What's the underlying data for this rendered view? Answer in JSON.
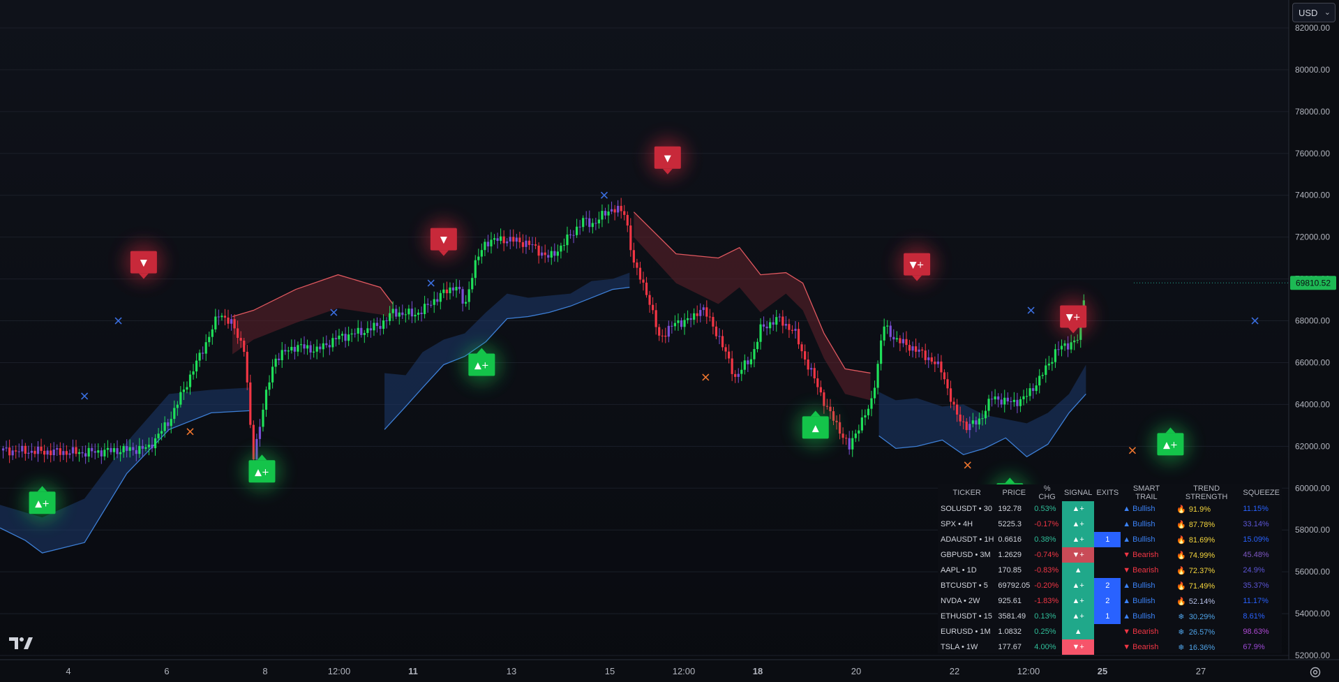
{
  "toolbar": {
    "currency": "USD"
  },
  "chart_data": {
    "type": "candlestick",
    "y_axis": {
      "range": [
        51000,
        83500
      ],
      "tick_labels": [
        "82000.00",
        "80000.00",
        "78000.00",
        "76000.00",
        "74000.00",
        "72000.00",
        "70000.00",
        "68000.00",
        "66000.00",
        "64000.00",
        "62000.00",
        "60000.00",
        "58000.00",
        "56000.00",
        "54000.00",
        "52000.00"
      ],
      "last_price_label": "69810.52",
      "last_price": 69810.52
    },
    "x_axis": {
      "tick_labels": [
        {
          "label": "4",
          "bold": false
        },
        {
          "label": "6",
          "bold": false
        },
        {
          "label": "8",
          "bold": false
        },
        {
          "label": "12:00",
          "bold": false
        },
        {
          "label": "11",
          "bold": true
        },
        {
          "label": "13",
          "bold": false
        },
        {
          "label": "15",
          "bold": false
        },
        {
          "label": "12:00",
          "bold": false
        },
        {
          "label": "18",
          "bold": true
        },
        {
          "label": "20",
          "bold": false
        },
        {
          "label": "22",
          "bold": false
        },
        {
          "label": "12:00",
          "bold": false
        },
        {
          "label": "25",
          "bold": true
        },
        {
          "label": "27",
          "bold": false
        }
      ]
    },
    "price_path": [
      [
        0,
        61800
      ],
      [
        2,
        61700
      ],
      [
        3.5,
        61900
      ],
      [
        4,
        63200
      ],
      [
        4.3,
        64500
      ],
      [
        4.7,
        66200
      ],
      [
        5,
        67500
      ],
      [
        5.2,
        68400
      ],
      [
        5.5,
        67800
      ],
      [
        5.8,
        66600
      ],
      [
        5.9,
        63300
      ],
      [
        6,
        61500
      ],
      [
        6.2,
        63600
      ],
      [
        6.5,
        66200
      ],
      [
        7,
        66800
      ],
      [
        7.5,
        66600
      ],
      [
        8,
        67200
      ],
      [
        8.6,
        67500
      ],
      [
        9,
        67800
      ],
      [
        9.3,
        68400
      ],
      [
        9.8,
        68300
      ],
      [
        10,
        68500
      ],
      [
        10.4,
        69200
      ],
      [
        10.8,
        69700
      ],
      [
        11,
        68600
      ],
      [
        11.2,
        70500
      ],
      [
        11.5,
        71800
      ],
      [
        12,
        71900
      ],
      [
        12.5,
        71700
      ],
      [
        13,
        71000
      ],
      [
        13.3,
        71600
      ],
      [
        13.8,
        72800
      ],
      [
        14,
        72600
      ],
      [
        14.5,
        73400
      ],
      [
        14.8,
        73100
      ],
      [
        15,
        70700
      ],
      [
        15.3,
        69400
      ],
      [
        15.6,
        67200
      ],
      [
        16,
        67900
      ],
      [
        16.4,
        68100
      ],
      [
        16.6,
        68700
      ],
      [
        17,
        67300
      ],
      [
        17.4,
        65300
      ],
      [
        17.8,
        66300
      ],
      [
        18,
        67600
      ],
      [
        18.4,
        68100
      ],
      [
        18.8,
        67500
      ],
      [
        19,
        66400
      ],
      [
        19.3,
        65100
      ],
      [
        19.6,
        63700
      ],
      [
        19.9,
        62700
      ],
      [
        20.1,
        61900
      ],
      [
        20.3,
        62900
      ],
      [
        20.6,
        63900
      ],
      [
        20.8,
        66200
      ],
      [
        20.9,
        67800
      ],
      [
        21.2,
        67100
      ],
      [
        21.6,
        66700
      ],
      [
        22,
        66200
      ],
      [
        22.3,
        65600
      ],
      [
        22.6,
        63600
      ],
      [
        22.9,
        62900
      ],
      [
        23.2,
        63300
      ],
      [
        23.5,
        64400
      ],
      [
        23.8,
        64100
      ],
      [
        24.2,
        64200
      ],
      [
        24.6,
        65200
      ],
      [
        25,
        66600
      ],
      [
        25.5,
        67100
      ],
      [
        25.7,
        69810
      ]
    ],
    "smart_trail_bear_band": {
      "upper": [
        [
          5.5,
          68200
        ],
        [
          6,
          68500
        ],
        [
          7,
          69500
        ],
        [
          8,
          70200
        ],
        [
          9,
          69600
        ],
        [
          9.3,
          68800
        ]
      ],
      "lower": [
        [
          5.5,
          66400
        ],
        [
          6,
          67100
        ],
        [
          7,
          67900
        ],
        [
          8,
          68600
        ],
        [
          9,
          68300
        ],
        [
          9.3,
          68100
        ]
      ],
      "start2": [
        [
          15,
          73200
        ],
        [
          16,
          71200
        ],
        [
          17,
          71000
        ],
        [
          17.5,
          71500
        ],
        [
          18,
          70200
        ],
        [
          18.6,
          70300
        ],
        [
          19,
          69800
        ],
        [
          19.5,
          67400
        ],
        [
          20,
          65700
        ],
        [
          20.6,
          65500
        ]
      ],
      "end2": [
        [
          15,
          72000
        ],
        [
          16,
          69800
        ],
        [
          17,
          68800
        ],
        [
          17.5,
          69600
        ],
        [
          18,
          68400
        ],
        [
          18.6,
          69300
        ],
        [
          19,
          68500
        ],
        [
          19.5,
          66200
        ],
        [
          20,
          64500
        ],
        [
          20.6,
          64200
        ]
      ]
    },
    "smart_trail_bull_band": {
      "segments": [
        {
          "upper": [
            [
              0,
              59200
            ],
            [
              1,
              58600
            ],
            [
              2,
              59500
            ],
            [
              3,
              62200
            ],
            [
              4,
              64500
            ],
            [
              5,
              64700
            ],
            [
              5.9,
              64800
            ]
          ],
          "lower": [
            [
              0,
              58100
            ],
            [
              0.6,
              57500
            ],
            [
              1,
              56900
            ],
            [
              2,
              57400
            ],
            [
              3,
              60700
            ],
            [
              4,
              62800
            ],
            [
              5,
              63600
            ],
            [
              5.9,
              63700
            ]
          ]
        },
        {
          "upper": [
            [
              9.1,
              65500
            ],
            [
              9.6,
              65400
            ],
            [
              10,
              66500
            ],
            [
              10.5,
              67100
            ],
            [
              11,
              67400
            ],
            [
              11.5,
              68400
            ],
            [
              12,
              69300
            ],
            [
              12.5,
              69100
            ],
            [
              13,
              69200
            ],
            [
              13.5,
              69300
            ],
            [
              14,
              69900
            ],
            [
              14.5,
              70000
            ],
            [
              14.9,
              70300
            ]
          ],
          "lower": [
            [
              9.1,
              62800
            ],
            [
              9.6,
              63900
            ],
            [
              10,
              64800
            ],
            [
              10.5,
              65900
            ],
            [
              11,
              66300
            ],
            [
              11.5,
              67000
            ],
            [
              12,
              68100
            ],
            [
              12.5,
              68200
            ],
            [
              13,
              68400
            ],
            [
              13.5,
              68700
            ],
            [
              14,
              69100
            ],
            [
              14.5,
              69500
            ],
            [
              14.9,
              69600
            ]
          ]
        },
        {
          "upper": [
            [
              20.8,
              64600
            ],
            [
              21.2,
              64200
            ],
            [
              21.7,
              64300
            ],
            [
              22.3,
              63900
            ],
            [
              22.8,
              64000
            ],
            [
              23.3,
              63500
            ],
            [
              23.8,
              63300
            ],
            [
              24.3,
              63100
            ],
            [
              24.8,
              63600
            ],
            [
              25.3,
              64500
            ],
            [
              25.7,
              65900
            ]
          ],
          "lower": [
            [
              20.8,
              62500
            ],
            [
              21.2,
              61900
            ],
            [
              21.7,
              62000
            ],
            [
              22.3,
              62300
            ],
            [
              22.8,
              61600
            ],
            [
              23.3,
              61900
            ],
            [
              23.8,
              62400
            ],
            [
              24.3,
              61500
            ],
            [
              24.8,
              62100
            ],
            [
              25.3,
              63600
            ],
            [
              25.7,
              64500
            ]
          ]
        }
      ]
    },
    "signals": [
      {
        "type": "buy",
        "label": "▲+",
        "x": 1.0,
        "price": 59300
      },
      {
        "type": "buy",
        "label": "▲+",
        "x": 6.2,
        "price": 60800
      },
      {
        "type": "buy",
        "label": "▲+",
        "x": 11.4,
        "price": 65900
      },
      {
        "type": "buy",
        "label": "▲",
        "x": 19.3,
        "price": 62900
      },
      {
        "type": "buy",
        "label": "▲",
        "x": 23.9,
        "price": 59700
      },
      {
        "type": "buy",
        "label": "▲+",
        "x": 27.7,
        "price": 62100
      },
      {
        "type": "sell",
        "label": "▼",
        "x": 3.4,
        "price": 70800
      },
      {
        "type": "sell",
        "label": "▼",
        "x": 10.5,
        "price": 71900
      },
      {
        "type": "sell",
        "label": "▼",
        "x": 15.8,
        "price": 75800
      },
      {
        "type": "sell",
        "label": "▼+",
        "x": 21.7,
        "price": 70700
      },
      {
        "type": "sell",
        "label": "▼+",
        "x": 25.4,
        "price": 68200
      }
    ],
    "exits": [
      {
        "color": "blue",
        "x": 2.8,
        "price": 68000
      },
      {
        "color": "blue",
        "x": 2.0,
        "price": 64400
      },
      {
        "color": "orange",
        "x": 4.5,
        "price": 62700
      },
      {
        "color": "blue",
        "x": 7.9,
        "price": 68400
      },
      {
        "color": "blue",
        "x": 10.2,
        "price": 69800
      },
      {
        "color": "blue",
        "x": 14.3,
        "price": 74000
      },
      {
        "color": "orange",
        "x": 16.7,
        "price": 65300
      },
      {
        "color": "orange",
        "x": 22.9,
        "price": 61100
      },
      {
        "color": "blue",
        "x": 24.4,
        "price": 68500
      },
      {
        "color": "orange",
        "x": 26.8,
        "price": 61800
      },
      {
        "color": "blue",
        "x": 29.7,
        "price": 68000
      }
    ]
  },
  "screener": {
    "headers": [
      "TICKER",
      "PRICE",
      "% CHG",
      "SIGNAL",
      "EXITS",
      "SMART TRAIL",
      "TREND STRENGTH",
      "SQUEEZE"
    ],
    "rows": [
      {
        "ticker": "SOLUSDT • 30",
        "price": "192.78",
        "chg": "0.53%",
        "dir": "pos",
        "signal": "▲+",
        "sig": "bull",
        "exits": "",
        "trail": "▲ Bullish",
        "trail_dir": "bull",
        "icon": "fire",
        "strength": "91.9%",
        "strength_color": "#f5d63d",
        "squeeze": "11.15%",
        "squeeze_color": "#2962ff"
      },
      {
        "ticker": "SPX • 4H",
        "price": "5225.3",
        "chg": "-0.17%",
        "dir": "neg",
        "signal": "▲+",
        "sig": "bull",
        "exits": "",
        "trail": "▲ Bullish",
        "trail_dir": "bull",
        "icon": "fire",
        "strength": "87.78%",
        "strength_color": "#f5d63d",
        "squeeze": "33.14%",
        "squeeze_color": "#5c55d6"
      },
      {
        "ticker": "ADAUSDT • 1H",
        "price": "0.6616",
        "chg": "0.38%",
        "dir": "pos",
        "signal": "▲+",
        "sig": "bull",
        "exits": "1",
        "trail": "▲ Bullish",
        "trail_dir": "bull",
        "icon": "fire",
        "strength": "81.69%",
        "strength_color": "#f5d63d",
        "squeeze": "15.09%",
        "squeeze_color": "#2962ff"
      },
      {
        "ticker": "GBPUSD • 3M",
        "price": "1.2629",
        "chg": "-0.74%",
        "dir": "neg",
        "signal": "▼+",
        "sig": "bear-dim",
        "exits": "",
        "trail": "▼ Bearish",
        "trail_dir": "bear",
        "icon": "fire",
        "strength": "74.99%",
        "strength_color": "#f5d63d",
        "squeeze": "45.48%",
        "squeeze_color": "#7e57c2"
      },
      {
        "ticker": "AAPL • 1D",
        "price": "170.85",
        "chg": "-0.83%",
        "dir": "neg",
        "signal": "▲",
        "sig": "bull",
        "exits": "",
        "trail": "▼ Bearish",
        "trail_dir": "bear",
        "icon": "fire",
        "strength": "72.37%",
        "strength_color": "#f5d63d",
        "squeeze": "24.9%",
        "squeeze_color": "#5c55d6"
      },
      {
        "ticker": "BTCUSDT • 5",
        "price": "69792.05",
        "chg": "-0.20%",
        "dir": "neg",
        "signal": "▲+",
        "sig": "bull",
        "exits": "2",
        "trail": "▲ Bullish",
        "trail_dir": "bull",
        "icon": "fire",
        "strength": "71.49%",
        "strength_color": "#f5d63d",
        "squeeze": "35.37%",
        "squeeze_color": "#5c55d6"
      },
      {
        "ticker": "NVDA • 2W",
        "price": "925.61",
        "chg": "-1.83%",
        "dir": "neg",
        "signal": "▲+",
        "sig": "bull",
        "exits": "2",
        "trail": "▲ Bullish",
        "trail_dir": "bull",
        "icon": "fire",
        "strength": "52.14%",
        "strength_color": "#b5bfe6",
        "squeeze": "11.17%",
        "squeeze_color": "#2962ff"
      },
      {
        "ticker": "ETHUSDT • 15",
        "price": "3581.49",
        "chg": "0.13%",
        "dir": "pos",
        "signal": "▲+",
        "sig": "bull",
        "exits": "1",
        "trail": "▲ Bullish",
        "trail_dir": "bull",
        "icon": "snow",
        "strength": "30.29%",
        "strength_color": "#4fa3e8",
        "squeeze": "8.61%",
        "squeeze_color": "#2962ff"
      },
      {
        "ticker": "EURUSD • 1M",
        "price": "1.0832",
        "chg": "0.25%",
        "dir": "pos",
        "signal": "▲",
        "sig": "bull",
        "exits": "",
        "trail": "▼ Bearish",
        "trail_dir": "bear",
        "icon": "snow",
        "strength": "26.57%",
        "strength_color": "#4fa3e8",
        "squeeze": "98.63%",
        "squeeze_color": "#b04ad6"
      },
      {
        "ticker": "TSLA • 1W",
        "price": "177.67",
        "chg": "4.00%",
        "dir": "pos",
        "signal": "▼+",
        "sig": "bear",
        "exits": "",
        "trail": "▼ Bearish",
        "trail_dir": "bear",
        "icon": "snow",
        "strength": "16.36%",
        "strength_color": "#4fa3e8",
        "squeeze": "67.9%",
        "squeeze_color": "#9c4ad6"
      }
    ]
  }
}
